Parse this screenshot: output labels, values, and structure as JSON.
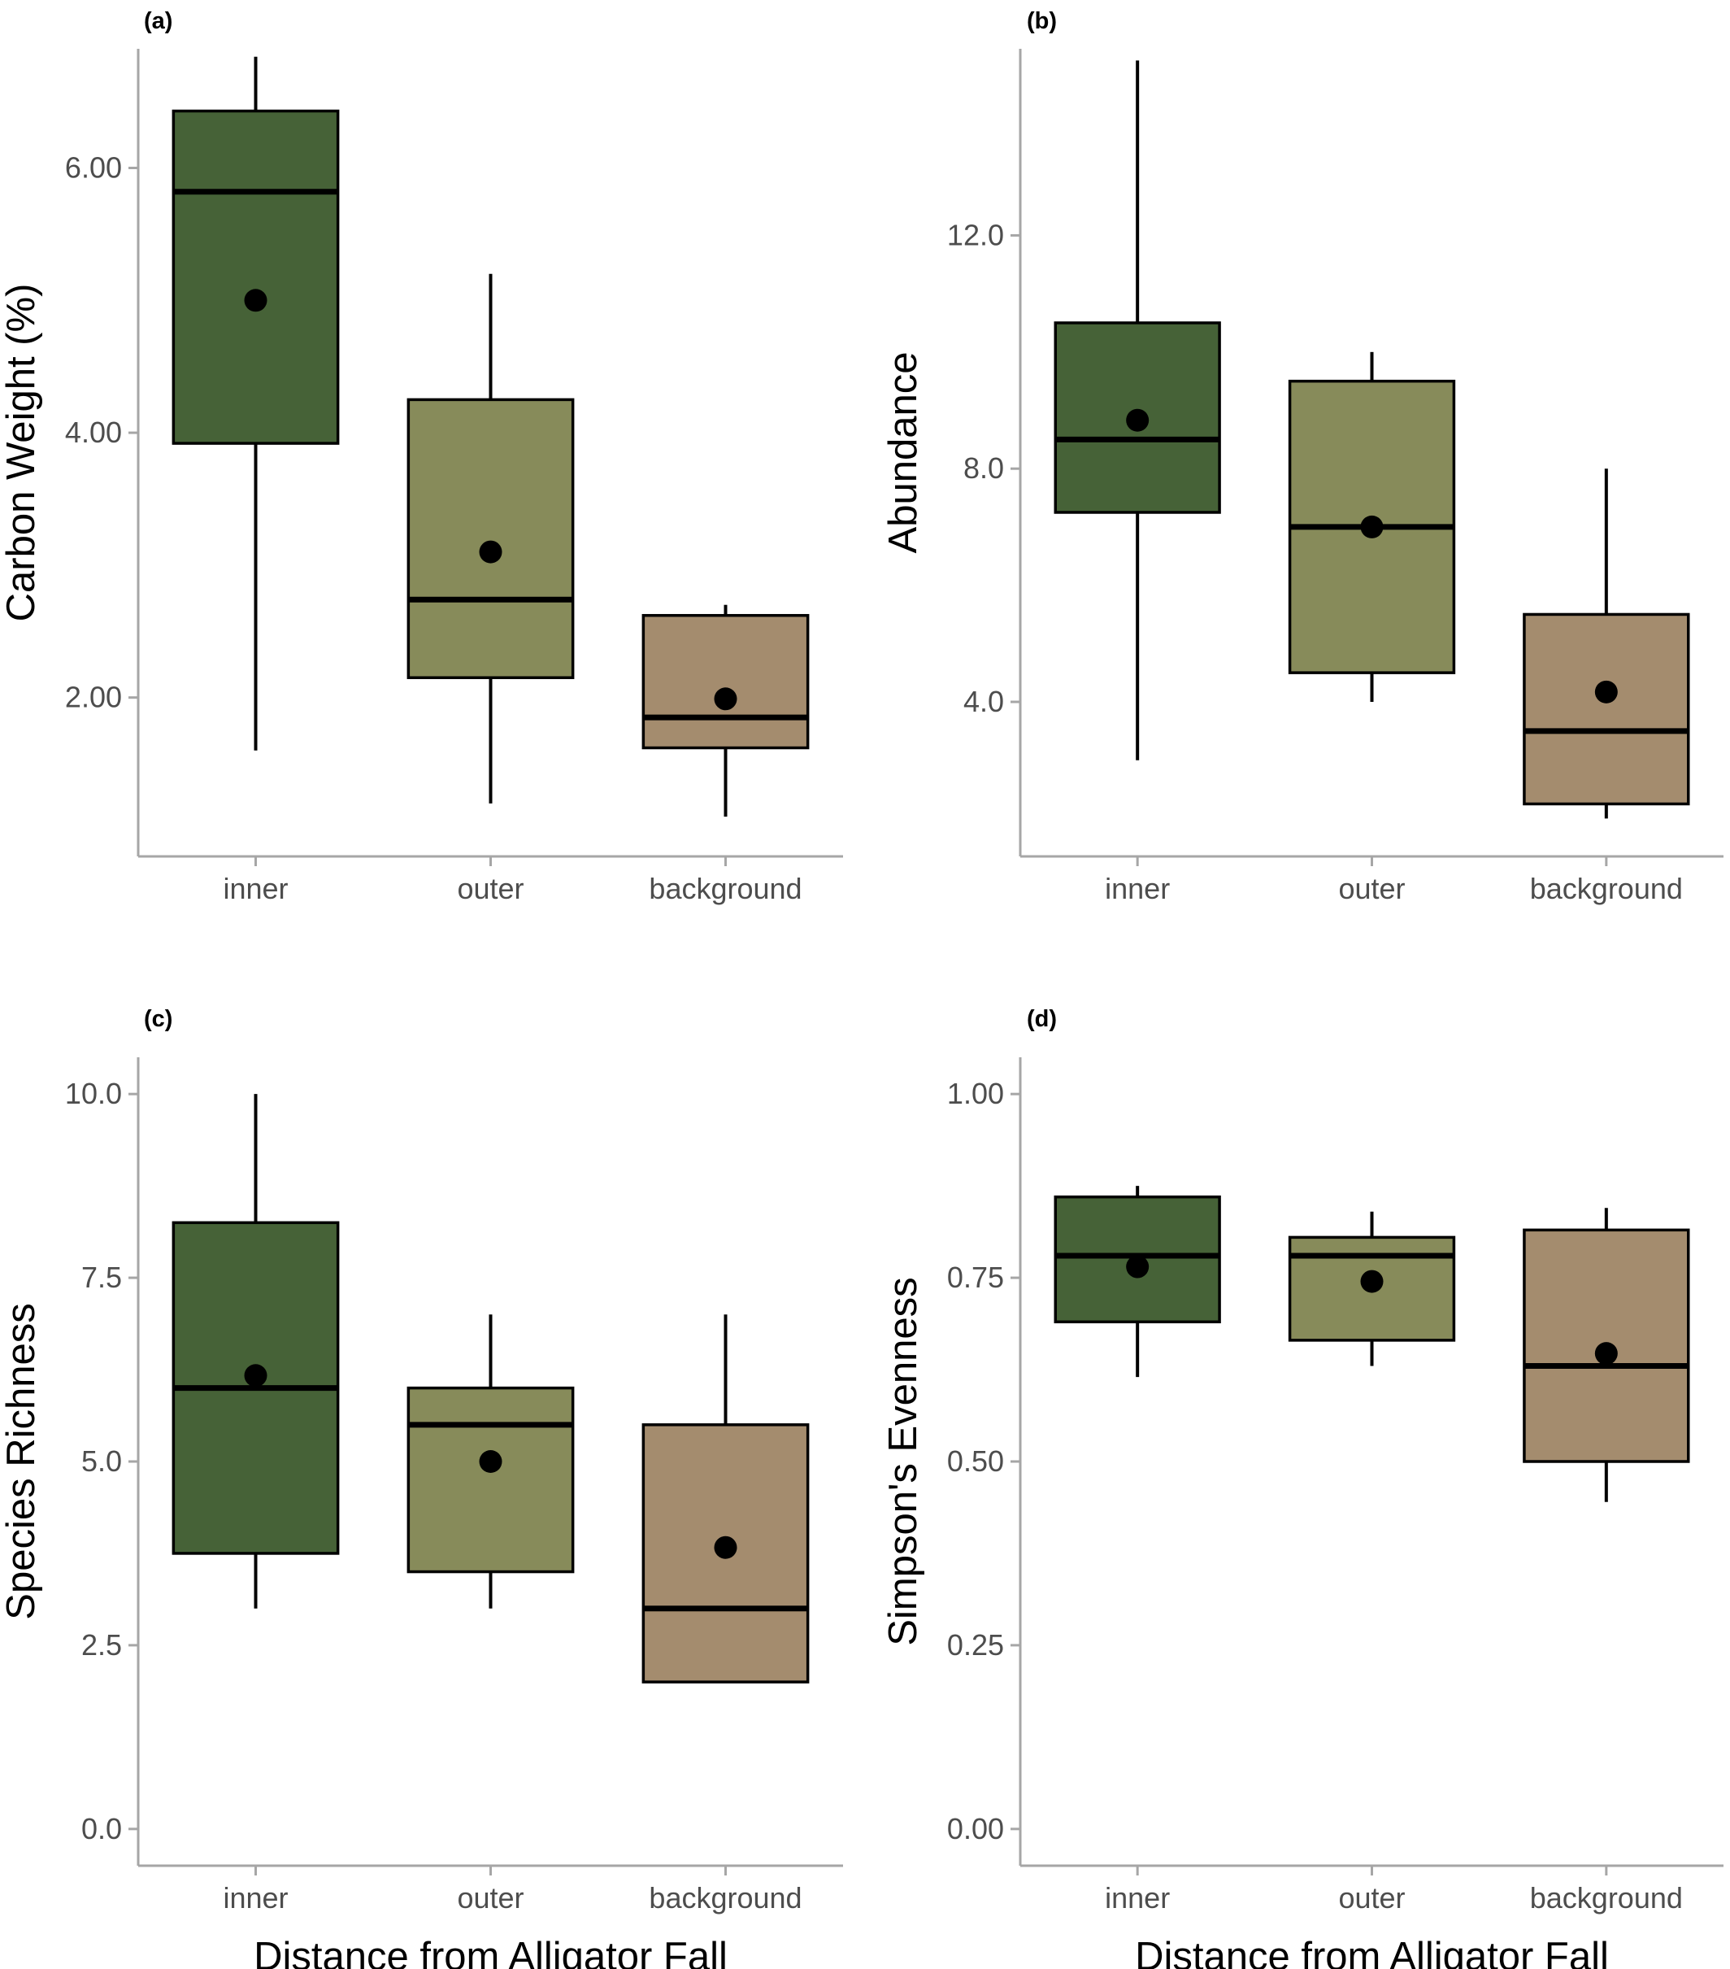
{
  "figure_xlabel": "Distance from Alligator Fall",
  "chart_data": [
    {
      "type": "box",
      "panel_label": "(a)",
      "title": "",
      "xlabel": "",
      "ylabel": "Carbon Weight (%)",
      "ylim": [
        0.8,
        6.9
      ],
      "yticks": [
        2,
        4,
        6
      ],
      "ytick_labels": [
        "2.00",
        "4.00",
        "6.00"
      ],
      "categories": [
        "inner",
        "outer",
        "background"
      ],
      "colors": [
        "#466237",
        "#878b5a",
        "#a48c6e"
      ],
      "boxes": [
        {
          "whisker_low": 1.6,
          "q1": 3.92,
          "median": 5.82,
          "q3": 6.43,
          "whisker_high": 6.84,
          "mean": 5.0
        },
        {
          "whisker_low": 1.2,
          "q1": 2.15,
          "median": 2.74,
          "q3": 4.25,
          "whisker_high": 5.2,
          "mean": 3.1
        },
        {
          "whisker_low": 1.1,
          "q1": 1.62,
          "median": 1.85,
          "q3": 2.62,
          "whisker_high": 2.7,
          "mean": 1.99
        }
      ]
    },
    {
      "type": "box",
      "panel_label": "(b)",
      "title": "",
      "xlabel": "",
      "ylabel": "Abundance",
      "ylim": [
        1.35,
        15.2
      ],
      "yticks": [
        4,
        8,
        12
      ],
      "ytick_labels": [
        "4.0",
        "8.0",
        "12.0"
      ],
      "categories": [
        "inner",
        "outer",
        "background"
      ],
      "colors": [
        "#466237",
        "#878b5a",
        "#a48c6e"
      ],
      "boxes": [
        {
          "whisker_low": 3.0,
          "q1": 7.25,
          "median": 8.5,
          "q3": 10.5,
          "whisker_high": 15.0,
          "mean": 8.83
        },
        {
          "whisker_low": 4.0,
          "q1": 4.5,
          "median": 7.0,
          "q3": 9.5,
          "whisker_high": 10.0,
          "mean": 7.0
        },
        {
          "whisker_low": 2.0,
          "q1": 2.25,
          "median": 3.5,
          "q3": 5.5,
          "whisker_high": 8.0,
          "mean": 4.17
        }
      ]
    },
    {
      "type": "box",
      "panel_label": "(c)",
      "title": "",
      "xlabel": "Distance from Alligator Fall",
      "ylabel": "Species Richness",
      "ylim": [
        -0.5,
        10.5
      ],
      "yticks": [
        0,
        2.5,
        5,
        7.5,
        10
      ],
      "ytick_labels": [
        "0.0",
        "2.5",
        "5.0",
        "7.5",
        "10.0"
      ],
      "categories": [
        "inner",
        "outer",
        "background"
      ],
      "colors": [
        "#466237",
        "#878b5a",
        "#a48c6e"
      ],
      "boxes": [
        {
          "whisker_low": 3.0,
          "q1": 3.75,
          "median": 6.0,
          "q3": 8.25,
          "whisker_high": 10.0,
          "mean": 6.17
        },
        {
          "whisker_low": 3.0,
          "q1": 3.5,
          "median": 5.5,
          "q3": 6.0,
          "whisker_high": 7.0,
          "mean": 5.0
        },
        {
          "whisker_low": 2.0,
          "q1": 2.0,
          "median": 3.0,
          "q3": 5.5,
          "whisker_high": 7.0,
          "mean": 3.83
        }
      ]
    },
    {
      "type": "box",
      "panel_label": "(d)",
      "title": "",
      "xlabel": "Distance from Alligator Fall",
      "ylabel": "Simpson's Evenness",
      "ylim": [
        -0.05,
        1.05
      ],
      "yticks": [
        0,
        0.25,
        0.5,
        0.75,
        1.0
      ],
      "ytick_labels": [
        "0.00",
        "0.25",
        "0.50",
        "0.75",
        "1.00"
      ],
      "categories": [
        "inner",
        "outer",
        "background"
      ],
      "colors": [
        "#466237",
        "#878b5a",
        "#a48c6e"
      ],
      "boxes": [
        {
          "whisker_low": 0.615,
          "q1": 0.69,
          "median": 0.78,
          "q3": 0.86,
          "whisker_high": 0.875,
          "mean": 0.765
        },
        {
          "whisker_low": 0.63,
          "q1": 0.665,
          "median": 0.78,
          "q3": 0.805,
          "whisker_high": 0.84,
          "mean": 0.745
        },
        {
          "whisker_low": 0.445,
          "q1": 0.5,
          "median": 0.63,
          "q3": 0.815,
          "whisker_high": 0.845,
          "mean": 0.647
        }
      ]
    }
  ]
}
